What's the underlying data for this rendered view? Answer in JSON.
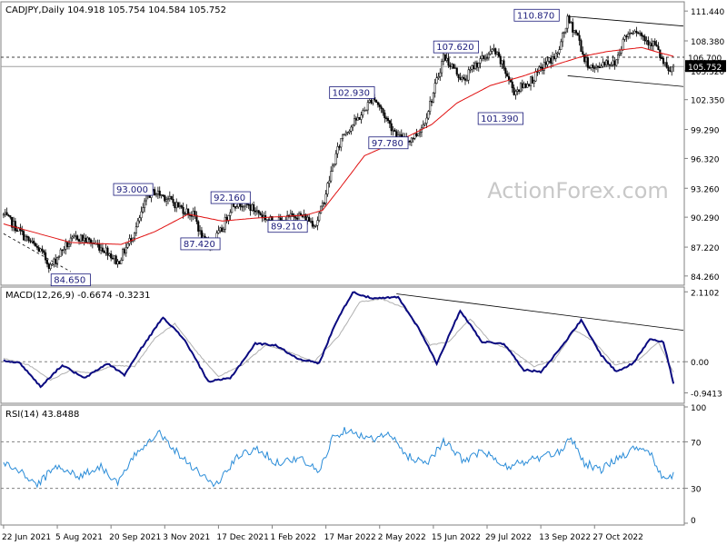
{
  "chart_data": {
    "type": "candlestick",
    "symbol_label": "CADJPY,Daily",
    "ohlc_label": "104.918 105.754 104.584 105.752",
    "watermark": "ActionForex.com",
    "price": {
      "ylim": [
        83.5,
        112.2
      ],
      "y_ticks": [
        "111.440",
        "108.380",
        "105.320",
        "102.350",
        "99.290",
        "96.320",
        "93.260",
        "90.290",
        "87.220",
        "84.260"
      ],
      "y_tick_values": [
        111.44,
        108.38,
        105.32,
        102.35,
        99.29,
        96.32,
        93.26,
        90.29,
        87.22,
        84.26
      ],
      "current_price_label": "105.752",
      "current_price": 105.752,
      "hline_label": "106.700",
      "hline": 106.7,
      "anchors": [
        {
          "i": 0,
          "v": 90.5
        },
        {
          "i": 6,
          "v": 89.5
        },
        {
          "i": 14,
          "v": 88.0
        },
        {
          "i": 22,
          "v": 86.8
        },
        {
          "i": 28,
          "v": 85.2
        },
        {
          "i": 36,
          "v": 87.2
        },
        {
          "i": 44,
          "v": 88.3
        },
        {
          "i": 54,
          "v": 87.6
        },
        {
          "i": 62,
          "v": 86.8
        },
        {
          "i": 68,
          "v": 85.6
        },
        {
          "i": 74,
          "v": 87.5
        },
        {
          "i": 80,
          "v": 89.6
        },
        {
          "i": 86,
          "v": 92.6
        },
        {
          "i": 90,
          "v": 92.9
        },
        {
          "i": 96,
          "v": 92.4
        },
        {
          "i": 106,
          "v": 91.2
        },
        {
          "i": 114,
          "v": 90.4
        },
        {
          "i": 118,
          "v": 88.0
        },
        {
          "i": 123,
          "v": 87.5
        },
        {
          "i": 130,
          "v": 89.0
        },
        {
          "i": 136,
          "v": 91.6
        },
        {
          "i": 142,
          "v": 91.8
        },
        {
          "i": 150,
          "v": 91.0
        },
        {
          "i": 158,
          "v": 90.0
        },
        {
          "i": 166,
          "v": 89.8
        },
        {
          "i": 174,
          "v": 90.6
        },
        {
          "i": 180,
          "v": 90.2
        },
        {
          "i": 186,
          "v": 89.6
        },
        {
          "i": 190,
          "v": 91.5
        },
        {
          "i": 196,
          "v": 95.5
        },
        {
          "i": 202,
          "v": 98.8
        },
        {
          "i": 208,
          "v": 99.8
        },
        {
          "i": 214,
          "v": 101.0
        },
        {
          "i": 220,
          "v": 102.7
        },
        {
          "i": 224,
          "v": 101.6
        },
        {
          "i": 230,
          "v": 99.8
        },
        {
          "i": 236,
          "v": 98.4
        },
        {
          "i": 240,
          "v": 98.1
        },
        {
          "i": 246,
          "v": 98.8
        },
        {
          "i": 250,
          "v": 99.8
        },
        {
          "i": 256,
          "v": 103.0
        },
        {
          "i": 262,
          "v": 106.8
        },
        {
          "i": 268,
          "v": 105.6
        },
        {
          "i": 274,
          "v": 104.2
        },
        {
          "i": 280,
          "v": 105.8
        },
        {
          "i": 286,
          "v": 106.6
        },
        {
          "i": 292,
          "v": 107.4
        },
        {
          "i": 298,
          "v": 105.6
        },
        {
          "i": 304,
          "v": 103.2
        },
        {
          "i": 310,
          "v": 103.8
        },
        {
          "i": 316,
          "v": 104.6
        },
        {
          "i": 322,
          "v": 105.9
        },
        {
          "i": 330,
          "v": 107.0
        },
        {
          "i": 336,
          "v": 110.5
        },
        {
          "i": 342,
          "v": 108.9
        },
        {
          "i": 346,
          "v": 106.4
        },
        {
          "i": 352,
          "v": 105.4
        },
        {
          "i": 358,
          "v": 106.3
        },
        {
          "i": 364,
          "v": 106.0
        },
        {
          "i": 370,
          "v": 108.8
        },
        {
          "i": 376,
          "v": 109.7
        },
        {
          "i": 382,
          "v": 108.6
        },
        {
          "i": 388,
          "v": 108.0
        },
        {
          "i": 392,
          "v": 106.4
        },
        {
          "i": 396,
          "v": 105.1
        },
        {
          "i": 399,
          "v": 105.75
        }
      ],
      "ma_anchors": [
        {
          "i": 0,
          "v": 89.6
        },
        {
          "i": 40,
          "v": 87.7
        },
        {
          "i": 70,
          "v": 87.5
        },
        {
          "i": 90,
          "v": 88.8
        },
        {
          "i": 110,
          "v": 90.6
        },
        {
          "i": 130,
          "v": 89.9
        },
        {
          "i": 150,
          "v": 90.2
        },
        {
          "i": 180,
          "v": 90.5
        },
        {
          "i": 190,
          "v": 91.0
        },
        {
          "i": 200,
          "v": 93.2
        },
        {
          "i": 215,
          "v": 96.6
        },
        {
          "i": 240,
          "v": 98.5
        },
        {
          "i": 255,
          "v": 99.8
        },
        {
          "i": 270,
          "v": 102.0
        },
        {
          "i": 290,
          "v": 103.8
        },
        {
          "i": 310,
          "v": 104.8
        },
        {
          "i": 330,
          "v": 106.0
        },
        {
          "i": 345,
          "v": 106.8
        },
        {
          "i": 360,
          "v": 107.3
        },
        {
          "i": 380,
          "v": 107.7
        },
        {
          "i": 390,
          "v": 107.2
        },
        {
          "i": 399,
          "v": 106.8
        }
      ],
      "labels": [
        {
          "text": "110.870",
          "i": 332,
          "v": 110.87,
          "pos": "left"
        },
        {
          "text": "107.620",
          "i": 284,
          "v": 107.62,
          "pos": "left"
        },
        {
          "text": "102.930",
          "i": 222,
          "v": 102.93,
          "pos": "left"
        },
        {
          "text": "101.390",
          "i": 304,
          "v": 101.39,
          "pos": "leftbelow"
        },
        {
          "text": "97.780",
          "i": 242,
          "v": 97.78,
          "pos": "left"
        },
        {
          "text": "93.000",
          "i": 90,
          "v": 93.0,
          "pos": "left"
        },
        {
          "text": "92.160",
          "i": 148,
          "v": 92.16,
          "pos": "left"
        },
        {
          "text": "89.210",
          "i": 182,
          "v": 89.21,
          "pos": "left"
        },
        {
          "text": "87.420",
          "i": 130,
          "v": 87.42,
          "pos": "left"
        },
        {
          "text": "84.650",
          "i": 40,
          "v": 84.65,
          "pos": "below"
        }
      ],
      "channel": [
        {
          "from": {
            "i": 336,
            "v": 110.9
          },
          "to": {
            "i": 430,
            "v": 109.9
          }
        },
        {
          "from": {
            "i": 336,
            "v": 104.8
          },
          "to": {
            "i": 430,
            "v": 103.7
          }
        }
      ],
      "dashed_trend": {
        "from": {
          "i": 0,
          "v": 88.6
        },
        "to": {
          "i": 40,
          "v": 84.7
        }
      }
    },
    "macd": {
      "label": "MACD(12,26,9) -0.6674 -0.3231",
      "ylim": [
        -1.2,
        2.2
      ],
      "y_ticks": [
        "2.1102",
        "0.00",
        "-0.9413"
      ],
      "y_tick_values": [
        2.1102,
        0.0,
        -0.9413
      ],
      "current_macd_label": "0.00",
      "anchors": [
        {
          "i": 0,
          "v": 0.05
        },
        {
          "i": 10,
          "v": -0.05
        },
        {
          "i": 22,
          "v": -0.75
        },
        {
          "i": 35,
          "v": -0.1
        },
        {
          "i": 48,
          "v": -0.5
        },
        {
          "i": 62,
          "v": -0.05
        },
        {
          "i": 72,
          "v": -0.4
        },
        {
          "i": 82,
          "v": 0.4
        },
        {
          "i": 95,
          "v": 1.35
        },
        {
          "i": 108,
          "v": 0.65
        },
        {
          "i": 122,
          "v": -0.6
        },
        {
          "i": 135,
          "v": -0.5
        },
        {
          "i": 150,
          "v": 0.55
        },
        {
          "i": 162,
          "v": 0.5
        },
        {
          "i": 175,
          "v": 0.1
        },
        {
          "i": 188,
          "v": -0.05
        },
        {
          "i": 198,
          "v": 1.2
        },
        {
          "i": 208,
          "v": 2.1
        },
        {
          "i": 220,
          "v": 1.9
        },
        {
          "i": 235,
          "v": 1.95
        },
        {
          "i": 248,
          "v": 0.95
        },
        {
          "i": 258,
          "v": -0.05
        },
        {
          "i": 272,
          "v": 1.55
        },
        {
          "i": 285,
          "v": 0.6
        },
        {
          "i": 298,
          "v": 0.55
        },
        {
          "i": 310,
          "v": -0.25
        },
        {
          "i": 320,
          "v": -0.3
        },
        {
          "i": 330,
          "v": 0.3
        },
        {
          "i": 344,
          "v": 1.25
        },
        {
          "i": 356,
          "v": 0.2
        },
        {
          "i": 365,
          "v": -0.3
        },
        {
          "i": 375,
          "v": -0.05
        },
        {
          "i": 385,
          "v": 0.7
        },
        {
          "i": 393,
          "v": 0.6
        },
        {
          "i": 399,
          "v": -0.65
        }
      ],
      "signal_anchors": [
        {
          "i": 0,
          "v": 0.1
        },
        {
          "i": 15,
          "v": -0.1
        },
        {
          "i": 28,
          "v": -0.55
        },
        {
          "i": 40,
          "v": -0.25
        },
        {
          "i": 52,
          "v": -0.35
        },
        {
          "i": 66,
          "v": -0.1
        },
        {
          "i": 78,
          "v": -0.15
        },
        {
          "i": 90,
          "v": 0.7
        },
        {
          "i": 102,
          "v": 1.15
        },
        {
          "i": 115,
          "v": 0.3
        },
        {
          "i": 128,
          "v": -0.45
        },
        {
          "i": 142,
          "v": -0.1
        },
        {
          "i": 156,
          "v": 0.5
        },
        {
          "i": 170,
          "v": 0.3
        },
        {
          "i": 185,
          "v": 0.0
        },
        {
          "i": 200,
          "v": 0.8
        },
        {
          "i": 212,
          "v": 1.8
        },
        {
          "i": 225,
          "v": 1.9
        },
        {
          "i": 240,
          "v": 1.6
        },
        {
          "i": 254,
          "v": 0.5
        },
        {
          "i": 265,
          "v": 0.6
        },
        {
          "i": 278,
          "v": 1.3
        },
        {
          "i": 290,
          "v": 0.6
        },
        {
          "i": 304,
          "v": 0.3
        },
        {
          "i": 316,
          "v": -0.15
        },
        {
          "i": 328,
          "v": 0.05
        },
        {
          "i": 340,
          "v": 0.95
        },
        {
          "i": 352,
          "v": 0.6
        },
        {
          "i": 364,
          "v": -0.1
        },
        {
          "i": 378,
          "v": 0.05
        },
        {
          "i": 390,
          "v": 0.6
        },
        {
          "i": 399,
          "v": -0.32
        }
      ],
      "trendline": {
        "from": {
          "i": 234,
          "v": 2.05
        },
        "to": {
          "i": 430,
          "v": 0.95
        }
      }
    },
    "rsi": {
      "label": "RSI(14) 43.8488",
      "ylim": [
        0,
        100
      ],
      "y_ticks": [
        "100",
        "70",
        "30",
        "0"
      ],
      "y_tick_values": [
        100,
        70,
        30,
        0
      ],
      "levels": [
        70,
        30
      ],
      "anchors": [
        {
          "i": 0,
          "v": 52
        },
        {
          "i": 10,
          "v": 44
        },
        {
          "i": 20,
          "v": 33
        },
        {
          "i": 32,
          "v": 50
        },
        {
          "i": 44,
          "v": 40
        },
        {
          "i": 58,
          "v": 49
        },
        {
          "i": 68,
          "v": 34
        },
        {
          "i": 80,
          "v": 62
        },
        {
          "i": 92,
          "v": 79
        },
        {
          "i": 104,
          "v": 60
        },
        {
          "i": 118,
          "v": 42
        },
        {
          "i": 126,
          "v": 32
        },
        {
          "i": 140,
          "v": 58
        },
        {
          "i": 152,
          "v": 64
        },
        {
          "i": 162,
          "v": 52
        },
        {
          "i": 176,
          "v": 56
        },
        {
          "i": 188,
          "v": 44
        },
        {
          "i": 196,
          "v": 74
        },
        {
          "i": 206,
          "v": 82
        },
        {
          "i": 216,
          "v": 72
        },
        {
          "i": 230,
          "v": 76
        },
        {
          "i": 240,
          "v": 58
        },
        {
          "i": 252,
          "v": 52
        },
        {
          "i": 262,
          "v": 70
        },
        {
          "i": 274,
          "v": 54
        },
        {
          "i": 286,
          "v": 62
        },
        {
          "i": 298,
          "v": 48
        },
        {
          "i": 308,
          "v": 52
        },
        {
          "i": 318,
          "v": 56
        },
        {
          "i": 330,
          "v": 60
        },
        {
          "i": 338,
          "v": 74
        },
        {
          "i": 346,
          "v": 52
        },
        {
          "i": 356,
          "v": 46
        },
        {
          "i": 366,
          "v": 56
        },
        {
          "i": 378,
          "v": 66
        },
        {
          "i": 386,
          "v": 60
        },
        {
          "i": 392,
          "v": 38
        },
        {
          "i": 396,
          "v": 36
        },
        {
          "i": 399,
          "v": 44
        }
      ]
    },
    "x_ticks": [
      "22 Jun 2021",
      "5 Aug 2021",
      "20 Sep 2021",
      "3 Nov 2021",
      "17 Dec 2021",
      "1 Feb 2022",
      "17 Mar 2022",
      "2 May 2022",
      "15 Jun 2022",
      "29 Jul 2022",
      "13 Sep 2022",
      "27 Oct 2022"
    ],
    "x_tick_index": [
      0,
      32,
      64,
      96,
      128,
      160,
      192,
      224,
      256,
      288,
      320,
      352
    ],
    "bars": 400
  }
}
